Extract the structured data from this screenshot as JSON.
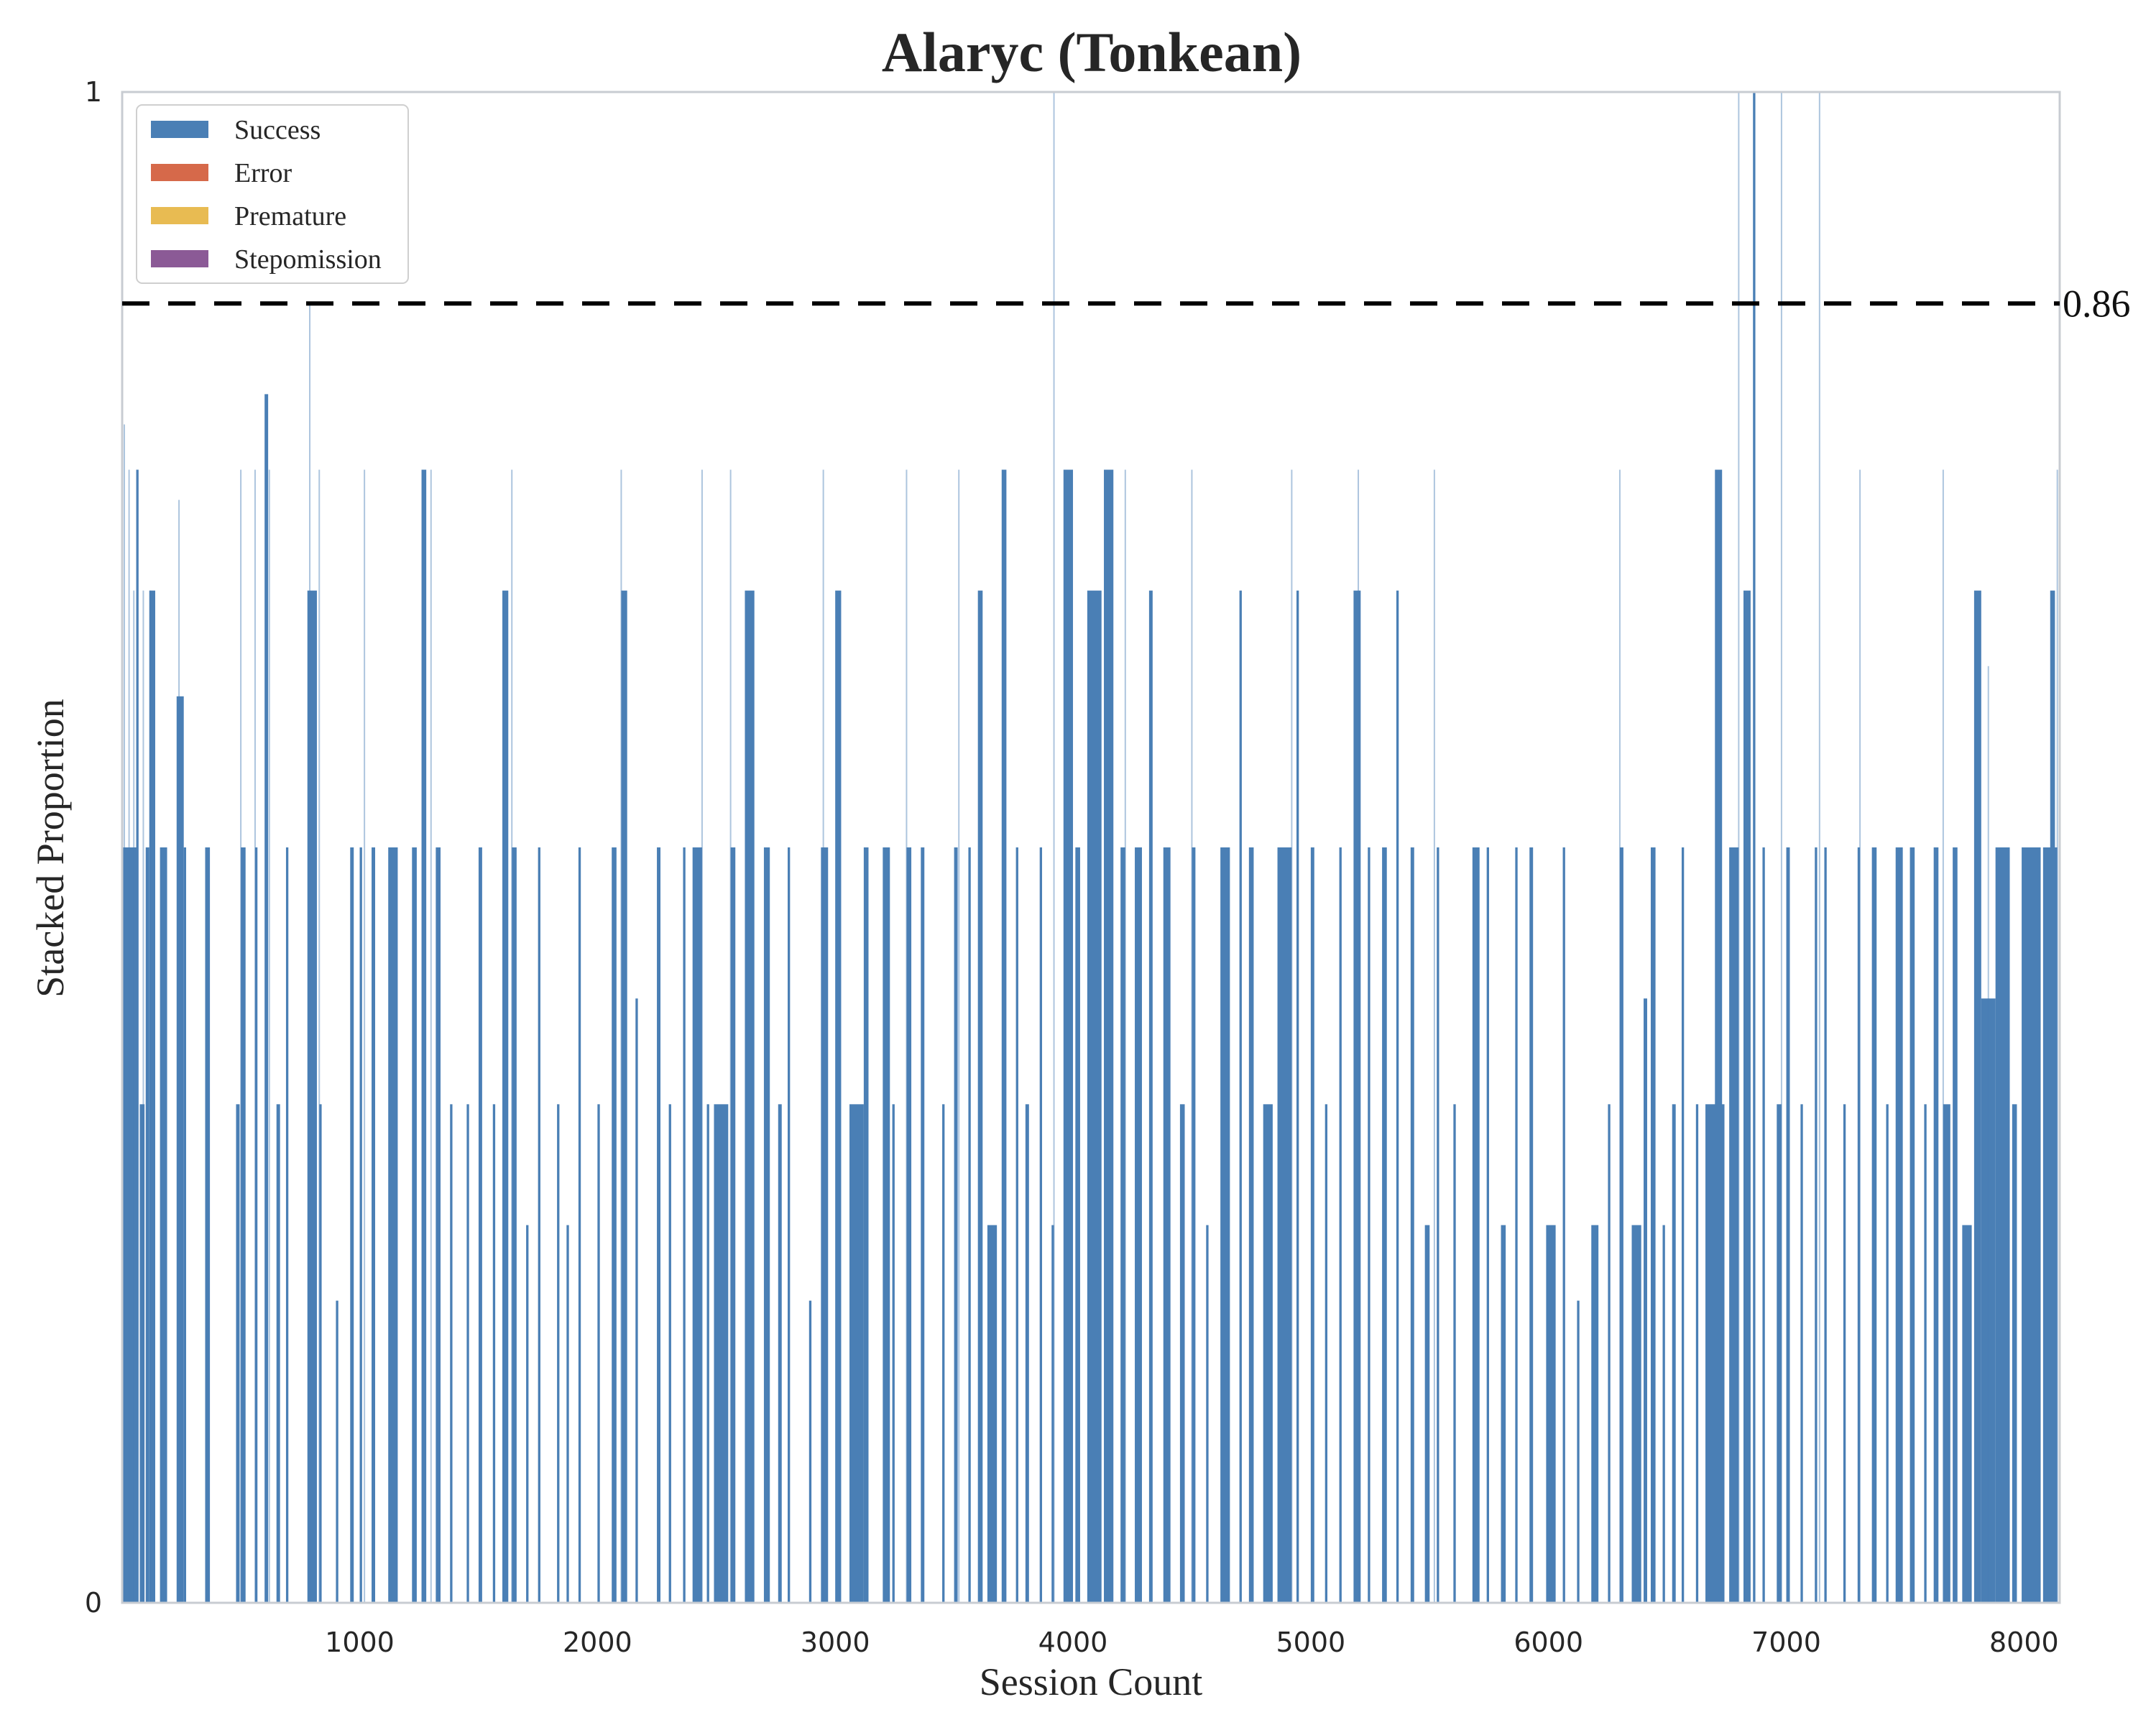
{
  "chart_data": {
    "type": "bar",
    "title": "Alaryc (Tonkean)",
    "xlabel": "Session Count",
    "ylabel": "Stacked Proportion",
    "xlim": [
      1,
      8150
    ],
    "ylim": [
      0,
      1
    ],
    "xticks": [
      1000,
      2000,
      3000,
      4000,
      5000,
      6000,
      7000,
      8000
    ],
    "yticks": [
      0,
      1
    ],
    "grid": false,
    "legend_position": "top-left",
    "reference_line": {
      "value": 0.86,
      "label": "0.86",
      "style": "dashed",
      "color": "#000000"
    },
    "series": [
      {
        "name": "Success",
        "color": "#4a7fb5"
      },
      {
        "name": "Error",
        "color": "#d6694a"
      },
      {
        "name": "Premature",
        "color": "#e8bb52"
      },
      {
        "name": "Stepomission",
        "color": "#8b5a96"
      }
    ],
    "bar_levels_note": "Success proportions per session; Error, Premature and Stepomission are 0 for visible sessions",
    "success_runs": [
      [
        1,
        60,
        0.5
      ],
      [
        60,
        10,
        0.75
      ],
      [
        75,
        20,
        0.33
      ],
      [
        100,
        15,
        0.5
      ],
      [
        115,
        25,
        0.67
      ],
      [
        160,
        30,
        0.5
      ],
      [
        230,
        30,
        0.6
      ],
      [
        260,
        10,
        0.5
      ],
      [
        350,
        20,
        0.5
      ],
      [
        480,
        15,
        0.33
      ],
      [
        500,
        20,
        0.5
      ],
      [
        560,
        10,
        0.5
      ],
      [
        600,
        15,
        0.8
      ],
      [
        650,
        15,
        0.33
      ],
      [
        690,
        10,
        0.5
      ],
      [
        780,
        40,
        0.67
      ],
      [
        830,
        10,
        0.33
      ],
      [
        900,
        10,
        0.2
      ],
      [
        960,
        15,
        0.5
      ],
      [
        1000,
        10,
        0.5
      ],
      [
        1050,
        15,
        0.5
      ],
      [
        1120,
        40,
        0.5
      ],
      [
        1220,
        20,
        0.5
      ],
      [
        1260,
        20,
        0.75
      ],
      [
        1320,
        20,
        0.5
      ],
      [
        1380,
        10,
        0.33
      ],
      [
        1450,
        10,
        0.33
      ],
      [
        1500,
        15,
        0.5
      ],
      [
        1560,
        10,
        0.33
      ],
      [
        1600,
        25,
        0.67
      ],
      [
        1640,
        20,
        0.5
      ],
      [
        1700,
        10,
        0.25
      ],
      [
        1750,
        10,
        0.5
      ],
      [
        1830,
        10,
        0.33
      ],
      [
        1870,
        10,
        0.25
      ],
      [
        1920,
        10,
        0.5
      ],
      [
        2000,
        10,
        0.33
      ],
      [
        2060,
        20,
        0.5
      ],
      [
        2100,
        25,
        0.67
      ],
      [
        2160,
        10,
        0.4
      ],
      [
        2250,
        15,
        0.5
      ],
      [
        2300,
        10,
        0.33
      ],
      [
        2360,
        10,
        0.5
      ],
      [
        2400,
        40,
        0.5
      ],
      [
        2460,
        10,
        0.33
      ],
      [
        2490,
        60,
        0.33
      ],
      [
        2560,
        20,
        0.5
      ],
      [
        2620,
        40,
        0.67
      ],
      [
        2700,
        25,
        0.5
      ],
      [
        2760,
        15,
        0.33
      ],
      [
        2800,
        10,
        0.5
      ],
      [
        2890,
        10,
        0.2
      ],
      [
        2940,
        30,
        0.5
      ],
      [
        3000,
        25,
        0.67
      ],
      [
        3060,
        60,
        0.33
      ],
      [
        3120,
        20,
        0.5
      ],
      [
        3200,
        30,
        0.5
      ],
      [
        3240,
        10,
        0.33
      ],
      [
        3300,
        20,
        0.5
      ],
      [
        3360,
        15,
        0.5
      ],
      [
        3450,
        10,
        0.33
      ],
      [
        3500,
        15,
        0.5
      ],
      [
        3560,
        10,
        0.5
      ],
      [
        3600,
        20,
        0.67
      ],
      [
        3640,
        40,
        0.25
      ],
      [
        3700,
        20,
        0.75
      ],
      [
        3760,
        10,
        0.5
      ],
      [
        3800,
        15,
        0.33
      ],
      [
        3860,
        10,
        0.5
      ],
      [
        3910,
        10,
        0.25
      ],
      [
        3960,
        40,
        0.75
      ],
      [
        4010,
        20,
        0.5
      ],
      [
        4060,
        60,
        0.67
      ],
      [
        4130,
        40,
        0.75
      ],
      [
        4200,
        20,
        0.5
      ],
      [
        4260,
        30,
        0.5
      ],
      [
        4320,
        15,
        0.67
      ],
      [
        4380,
        30,
        0.5
      ],
      [
        4450,
        20,
        0.33
      ],
      [
        4500,
        15,
        0.5
      ],
      [
        4560,
        10,
        0.25
      ],
      [
        4620,
        40,
        0.5
      ],
      [
        4700,
        10,
        0.67
      ],
      [
        4740,
        20,
        0.5
      ],
      [
        4800,
        40,
        0.33
      ],
      [
        4860,
        60,
        0.5
      ],
      [
        4940,
        10,
        0.67
      ],
      [
        5000,
        15,
        0.5
      ],
      [
        5060,
        10,
        0.33
      ],
      [
        5120,
        10,
        0.5
      ],
      [
        5180,
        30,
        0.67
      ],
      [
        5240,
        10,
        0.5
      ],
      [
        5300,
        20,
        0.5
      ],
      [
        5360,
        10,
        0.67
      ],
      [
        5420,
        15,
        0.5
      ],
      [
        5480,
        20,
        0.25
      ],
      [
        5530,
        10,
        0.5
      ],
      [
        5600,
        10,
        0.33
      ],
      [
        5680,
        30,
        0.5
      ],
      [
        5740,
        10,
        0.5
      ],
      [
        5800,
        20,
        0.25
      ],
      [
        5860,
        10,
        0.5
      ],
      [
        5920,
        15,
        0.5
      ],
      [
        5990,
        40,
        0.25
      ],
      [
        6060,
        10,
        0.5
      ],
      [
        6120,
        10,
        0.2
      ],
      [
        6180,
        30,
        0.25
      ],
      [
        6250,
        10,
        0.33
      ],
      [
        6300,
        15,
        0.5
      ],
      [
        6350,
        40,
        0.25
      ],
      [
        6400,
        15,
        0.4
      ],
      [
        6430,
        20,
        0.5
      ],
      [
        6480,
        10,
        0.25
      ],
      [
        6520,
        15,
        0.33
      ],
      [
        6560,
        10,
        0.5
      ],
      [
        6620,
        10,
        0.33
      ],
      [
        6660,
        80,
        0.33
      ],
      [
        6700,
        30,
        0.75
      ],
      [
        6760,
        40,
        0.5
      ],
      [
        6820,
        30,
        0.67
      ],
      [
        6860,
        10,
        1.0
      ],
      [
        6900,
        10,
        0.5
      ],
      [
        6960,
        20,
        0.33
      ],
      [
        7000,
        15,
        0.5
      ],
      [
        7060,
        10,
        0.33
      ],
      [
        7120,
        10,
        0.5
      ],
      [
        7160,
        10,
        0.5
      ],
      [
        7240,
        10,
        0.33
      ],
      [
        7300,
        10,
        0.5
      ],
      [
        7360,
        20,
        0.5
      ],
      [
        7420,
        10,
        0.33
      ],
      [
        7460,
        30,
        0.5
      ],
      [
        7520,
        20,
        0.5
      ],
      [
        7580,
        10,
        0.33
      ],
      [
        7620,
        20,
        0.5
      ],
      [
        7660,
        30,
        0.33
      ],
      [
        7700,
        20,
        0.5
      ],
      [
        7740,
        40,
        0.25
      ],
      [
        7790,
        30,
        0.67
      ],
      [
        7820,
        60,
        0.4
      ],
      [
        7880,
        60,
        0.5
      ],
      [
        7950,
        20,
        0.33
      ],
      [
        7990,
        80,
        0.5
      ],
      [
        8080,
        60,
        0.5
      ],
      [
        8110,
        20,
        0.67
      ]
    ],
    "thin_spikes": [
      [
        10,
        0.78
      ],
      [
        30,
        0.75
      ],
      [
        50,
        0.67
      ],
      [
        90,
        0.67
      ],
      [
        120,
        0.67
      ],
      [
        240,
        0.73
      ],
      [
        500,
        0.75
      ],
      [
        560,
        0.75
      ],
      [
        620,
        0.75
      ],
      [
        790,
        0.86
      ],
      [
        830,
        0.75
      ],
      [
        1020,
        0.75
      ],
      [
        1300,
        0.75
      ],
      [
        1640,
        0.75
      ],
      [
        2100,
        0.75
      ],
      [
        2440,
        0.75
      ],
      [
        2560,
        0.75
      ],
      [
        2950,
        0.75
      ],
      [
        3300,
        0.75
      ],
      [
        3520,
        0.75
      ],
      [
        3920,
        1.0
      ],
      [
        4220,
        0.75
      ],
      [
        4500,
        0.75
      ],
      [
        4920,
        0.75
      ],
      [
        5200,
        0.75
      ],
      [
        5520,
        0.75
      ],
      [
        6300,
        0.75
      ],
      [
        6800,
        1.0
      ],
      [
        6980,
        1.0
      ],
      [
        7140,
        1.0
      ],
      [
        7310,
        0.75
      ],
      [
        7660,
        0.75
      ],
      [
        7850,
        0.62
      ],
      [
        8140,
        0.75
      ]
    ]
  }
}
